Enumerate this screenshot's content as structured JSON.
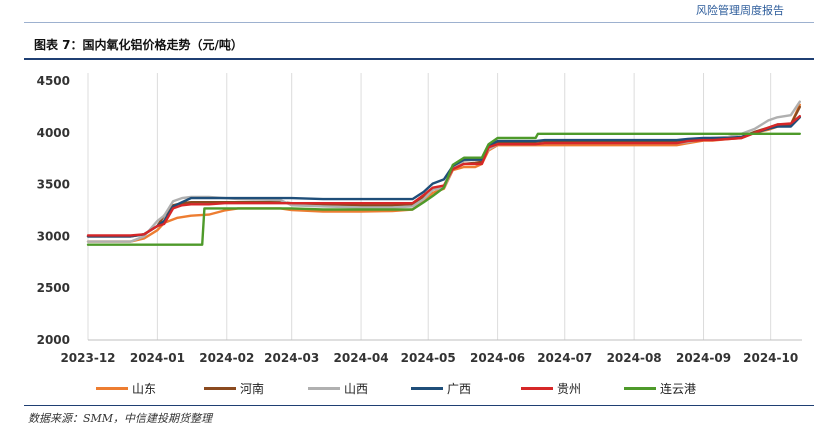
{
  "header": {
    "report_name": "风险管理周度报告"
  },
  "figure": {
    "title": "图表 7：国内氧化铝价格走势（元/吨）",
    "source": "数据来源：SMM，中信建投期货整理"
  },
  "chart_data": {
    "type": "line",
    "title": "国内氧化铝价格走势（元/吨）",
    "xlabel": "",
    "ylabel": "",
    "ylim": [
      2000,
      4500
    ],
    "yticks": [
      2000,
      2500,
      3000,
      3500,
      4000,
      4500
    ],
    "xlim": [
      "2023-12-01",
      "2024-10-15"
    ],
    "xticks": [
      "2023-12",
      "2024-01",
      "2024-02",
      "2024-03",
      "2024-04",
      "2024-05",
      "2024-06",
      "2024-07",
      "2024-08",
      "2024-09",
      "2024-10"
    ],
    "grid": "vertical",
    "legend_position": "bottom",
    "series": [
      {
        "name": "山东",
        "color": "#ed7d31",
        "points": [
          [
            "2023-12-01",
            2950
          ],
          [
            "2023-12-20",
            2950
          ],
          [
            "2023-12-26",
            2980
          ],
          [
            "2024-01-01",
            3060
          ],
          [
            "2024-01-04",
            3130
          ],
          [
            "2024-01-10",
            3180
          ],
          [
            "2024-01-16",
            3200
          ],
          [
            "2024-01-24",
            3210
          ],
          [
            "2024-01-31",
            3250
          ],
          [
            "2024-02-06",
            3270
          ],
          [
            "2024-02-25",
            3270
          ],
          [
            "2024-03-01",
            3255
          ],
          [
            "2024-03-15",
            3240
          ],
          [
            "2024-04-01",
            3240
          ],
          [
            "2024-04-15",
            3245
          ],
          [
            "2024-04-24",
            3260
          ],
          [
            "2024-04-29",
            3340
          ],
          [
            "2024-05-03",
            3420
          ],
          [
            "2024-05-08",
            3460
          ],
          [
            "2024-05-12",
            3640
          ],
          [
            "2024-05-17",
            3670
          ],
          [
            "2024-05-22",
            3670
          ],
          [
            "2024-05-25",
            3700
          ],
          [
            "2024-05-28",
            3830
          ],
          [
            "2024-06-01",
            3880
          ],
          [
            "2024-06-05",
            3880
          ],
          [
            "2024-06-18",
            3880
          ],
          [
            "2024-06-22",
            3880
          ],
          [
            "2024-08-20",
            3880
          ],
          [
            "2024-08-25",
            3900
          ],
          [
            "2024-09-01",
            3925
          ],
          [
            "2024-09-05",
            3925
          ],
          [
            "2024-09-12",
            3940
          ],
          [
            "2024-09-18",
            3950
          ],
          [
            "2024-09-24",
            4000
          ],
          [
            "2024-09-30",
            4030
          ],
          [
            "2024-10-04",
            4060
          ],
          [
            "2024-10-10",
            4080
          ],
          [
            "2024-10-14",
            4270
          ]
        ]
      },
      {
        "name": "河南",
        "color": "#8b4a1f",
        "points": [
          [
            "2023-12-01",
            3000
          ],
          [
            "2023-12-20",
            3000
          ],
          [
            "2023-12-26",
            3020
          ],
          [
            "2024-01-01",
            3100
          ],
          [
            "2024-01-04",
            3200
          ],
          [
            "2024-01-08",
            3300
          ],
          [
            "2024-01-12",
            3320
          ],
          [
            "2024-01-16",
            3330
          ],
          [
            "2024-01-24",
            3330
          ],
          [
            "2024-01-31",
            3330
          ],
          [
            "2024-02-06",
            3330
          ],
          [
            "2024-02-25",
            3330
          ],
          [
            "2024-03-01",
            3320
          ],
          [
            "2024-03-15",
            3310
          ],
          [
            "2024-04-01",
            3300
          ],
          [
            "2024-04-15",
            3300
          ],
          [
            "2024-04-24",
            3310
          ],
          [
            "2024-04-29",
            3380
          ],
          [
            "2024-05-03",
            3460
          ],
          [
            "2024-05-08",
            3480
          ],
          [
            "2024-05-12",
            3660
          ],
          [
            "2024-05-17",
            3700
          ],
          [
            "2024-05-22",
            3710
          ],
          [
            "2024-05-25",
            3720
          ],
          [
            "2024-05-28",
            3860
          ],
          [
            "2024-06-01",
            3900
          ],
          [
            "2024-06-05",
            3900
          ],
          [
            "2024-06-18",
            3900
          ],
          [
            "2024-06-22",
            3910
          ],
          [
            "2024-08-20",
            3910
          ],
          [
            "2024-08-25",
            3920
          ],
          [
            "2024-09-01",
            3940
          ],
          [
            "2024-09-05",
            3940
          ],
          [
            "2024-09-12",
            3950
          ],
          [
            "2024-09-18",
            3960
          ],
          [
            "2024-09-24",
            4010
          ],
          [
            "2024-09-30",
            4050
          ],
          [
            "2024-10-04",
            4080
          ],
          [
            "2024-10-10",
            4080
          ],
          [
            "2024-10-14",
            4250
          ]
        ]
      },
      {
        "name": "山西",
        "color": "#b0b0b0",
        "points": [
          [
            "2023-12-01",
            2950
          ],
          [
            "2023-12-20",
            2950
          ],
          [
            "2023-12-26",
            3000
          ],
          [
            "2024-01-01",
            3150
          ],
          [
            "2024-01-04",
            3200
          ],
          [
            "2024-01-08",
            3340
          ],
          [
            "2024-01-12",
            3370
          ],
          [
            "2024-01-16",
            3380
          ],
          [
            "2024-01-24",
            3380
          ],
          [
            "2024-01-31",
            3370
          ],
          [
            "2024-02-06",
            3360
          ],
          [
            "2024-02-25",
            3350
          ],
          [
            "2024-03-01",
            3300
          ],
          [
            "2024-03-15",
            3290
          ],
          [
            "2024-04-01",
            3280
          ],
          [
            "2024-04-15",
            3280
          ],
          [
            "2024-04-24",
            3290
          ],
          [
            "2024-04-29",
            3360
          ],
          [
            "2024-05-03",
            3450
          ],
          [
            "2024-05-08",
            3470
          ],
          [
            "2024-05-12",
            3650
          ],
          [
            "2024-05-17",
            3730
          ],
          [
            "2024-05-22",
            3740
          ],
          [
            "2024-05-25",
            3740
          ],
          [
            "2024-05-28",
            3840
          ],
          [
            "2024-06-01",
            3890
          ],
          [
            "2024-06-05",
            3890
          ],
          [
            "2024-06-18",
            3890
          ],
          [
            "2024-06-22",
            3900
          ],
          [
            "2024-08-20",
            3900
          ],
          [
            "2024-08-25",
            3910
          ],
          [
            "2024-09-01",
            3940
          ],
          [
            "2024-09-05",
            3950
          ],
          [
            "2024-09-12",
            3960
          ],
          [
            "2024-09-18",
            3990
          ],
          [
            "2024-09-24",
            4040
          ],
          [
            "2024-09-30",
            4120
          ],
          [
            "2024-10-04",
            4150
          ],
          [
            "2024-10-10",
            4170
          ],
          [
            "2024-10-14",
            4300
          ]
        ]
      },
      {
        "name": "广西",
        "color": "#1f4e79",
        "points": [
          [
            "2023-12-01",
            3000
          ],
          [
            "2023-12-20",
            3000
          ],
          [
            "2023-12-26",
            3020
          ],
          [
            "2024-01-01",
            3100
          ],
          [
            "2024-01-04",
            3150
          ],
          [
            "2024-01-08",
            3290
          ],
          [
            "2024-01-12",
            3330
          ],
          [
            "2024-01-16",
            3370
          ],
          [
            "2024-01-24",
            3370
          ],
          [
            "2024-01-31",
            3370
          ],
          [
            "2024-02-06",
            3370
          ],
          [
            "2024-02-25",
            3370
          ],
          [
            "2024-03-01",
            3370
          ],
          [
            "2024-03-15",
            3360
          ],
          [
            "2024-04-01",
            3360
          ],
          [
            "2024-04-15",
            3360
          ],
          [
            "2024-04-24",
            3360
          ],
          [
            "2024-04-29",
            3430
          ],
          [
            "2024-05-03",
            3510
          ],
          [
            "2024-05-08",
            3550
          ],
          [
            "2024-05-12",
            3680
          ],
          [
            "2024-05-17",
            3740
          ],
          [
            "2024-05-22",
            3740
          ],
          [
            "2024-05-25",
            3740
          ],
          [
            "2024-05-28",
            3880
          ],
          [
            "2024-06-01",
            3920
          ],
          [
            "2024-06-05",
            3920
          ],
          [
            "2024-06-18",
            3920
          ],
          [
            "2024-06-22",
            3930
          ],
          [
            "2024-08-20",
            3930
          ],
          [
            "2024-08-25",
            3940
          ],
          [
            "2024-09-01",
            3950
          ],
          [
            "2024-09-05",
            3950
          ],
          [
            "2024-09-12",
            3950
          ],
          [
            "2024-09-18",
            3960
          ],
          [
            "2024-09-24",
            4000
          ],
          [
            "2024-09-30",
            4040
          ],
          [
            "2024-10-04",
            4060
          ],
          [
            "2024-10-10",
            4060
          ],
          [
            "2024-10-14",
            4150
          ]
        ]
      },
      {
        "name": "贵州",
        "color": "#d62728",
        "points": [
          [
            "2023-12-01",
            3010
          ],
          [
            "2023-12-20",
            3010
          ],
          [
            "2023-12-26",
            3020
          ],
          [
            "2024-01-01",
            3100
          ],
          [
            "2024-01-04",
            3120
          ],
          [
            "2024-01-08",
            3270
          ],
          [
            "2024-01-12",
            3300
          ],
          [
            "2024-01-16",
            3310
          ],
          [
            "2024-01-24",
            3310
          ],
          [
            "2024-01-31",
            3320
          ],
          [
            "2024-02-06",
            3320
          ],
          [
            "2024-02-25",
            3320
          ],
          [
            "2024-03-01",
            3320
          ],
          [
            "2024-03-15",
            3320
          ],
          [
            "2024-04-01",
            3320
          ],
          [
            "2024-04-15",
            3320
          ],
          [
            "2024-04-24",
            3320
          ],
          [
            "2024-04-29",
            3400
          ],
          [
            "2024-05-03",
            3470
          ],
          [
            "2024-05-08",
            3490
          ],
          [
            "2024-05-12",
            3650
          ],
          [
            "2024-05-17",
            3700
          ],
          [
            "2024-05-22",
            3700
          ],
          [
            "2024-05-25",
            3700
          ],
          [
            "2024-05-28",
            3860
          ],
          [
            "2024-06-01",
            3890
          ],
          [
            "2024-06-05",
            3890
          ],
          [
            "2024-06-18",
            3890
          ],
          [
            "2024-06-22",
            3900
          ],
          [
            "2024-08-20",
            3900
          ],
          [
            "2024-08-25",
            3920
          ],
          [
            "2024-09-01",
            3930
          ],
          [
            "2024-09-05",
            3930
          ],
          [
            "2024-09-12",
            3940
          ],
          [
            "2024-09-18",
            3950
          ],
          [
            "2024-09-24",
            4000
          ],
          [
            "2024-09-30",
            4050
          ],
          [
            "2024-10-04",
            4080
          ],
          [
            "2024-10-10",
            4090
          ],
          [
            "2024-10-14",
            4160
          ]
        ]
      },
      {
        "name": "连云港",
        "color": "#4e9a2a",
        "points": [
          [
            "2023-12-01",
            2920
          ],
          [
            "2024-01-21",
            2920
          ],
          [
            "2024-01-22",
            3270
          ],
          [
            "2024-02-25",
            3270
          ],
          [
            "2024-03-01",
            3270
          ],
          [
            "2024-03-15",
            3260
          ],
          [
            "2024-04-01",
            3260
          ],
          [
            "2024-04-15",
            3260
          ],
          [
            "2024-04-24",
            3260
          ],
          [
            "2024-04-29",
            3330
          ],
          [
            "2024-05-03",
            3390
          ],
          [
            "2024-05-08",
            3470
          ],
          [
            "2024-05-12",
            3690
          ],
          [
            "2024-05-17",
            3760
          ],
          [
            "2024-05-22",
            3760
          ],
          [
            "2024-05-25",
            3760
          ],
          [
            "2024-05-28",
            3890
          ],
          [
            "2024-06-01",
            3950
          ],
          [
            "2024-06-05",
            3950
          ],
          [
            "2024-06-18",
            3950
          ],
          [
            "2024-06-19",
            3990
          ],
          [
            "2024-10-14",
            3990
          ]
        ]
      }
    ]
  }
}
